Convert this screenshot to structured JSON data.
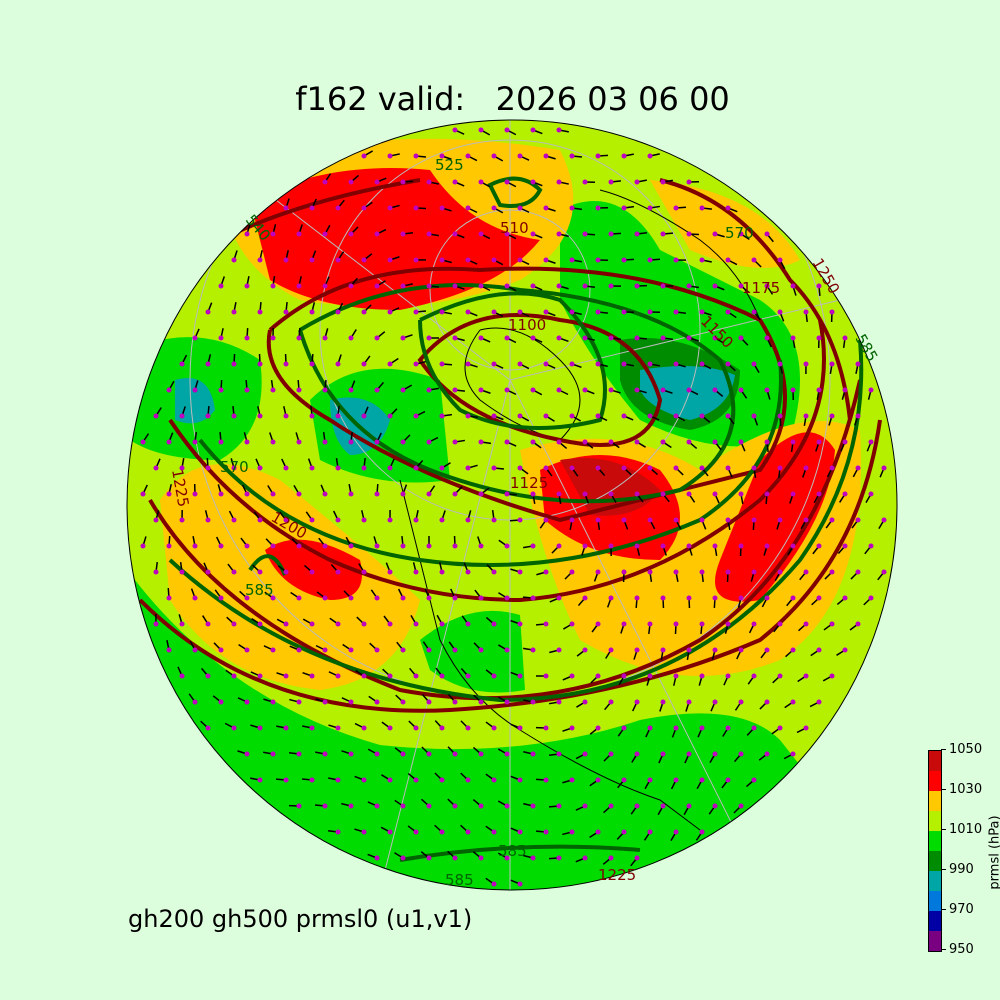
{
  "title": "f162 valid:   2026 03 06 00",
  "subtitle": "gh200 gh500 prmsl0 (u1,v1)",
  "colorbar": {
    "label": "prmsl (hPa)",
    "ticks": [
      "950",
      "970",
      "990",
      "1010",
      "1030",
      "1050"
    ],
    "levels": [
      950,
      960,
      970,
      980,
      990,
      1000,
      1010,
      1020,
      1030,
      1040,
      1050
    ],
    "colors": [
      "#7a0082",
      "#0000a5",
      "#0078dc",
      "#00a5a5",
      "#008c00",
      "#00dc00",
      "#b4f000",
      "#ffc800",
      "#ff0000",
      "#c80a0a"
    ]
  },
  "contour_colors": {
    "gh500": "#006400",
    "gh200": "#800000",
    "vectors": "#000000",
    "vector_base": "#c000c0"
  },
  "contour_labels": {
    "l1": "525",
    "l2": "510",
    "l3": "570",
    "l4": "1175",
    "l5": "1250",
    "l6": "585",
    "l7": "1100",
    "l8": "1125",
    "l9": "570",
    "l10": "1200",
    "l11": "585",
    "l12": "585",
    "l13": "1225",
    "l14": "1225",
    "l15": "585",
    "l16": "540",
    "l17": "1150"
  }
}
